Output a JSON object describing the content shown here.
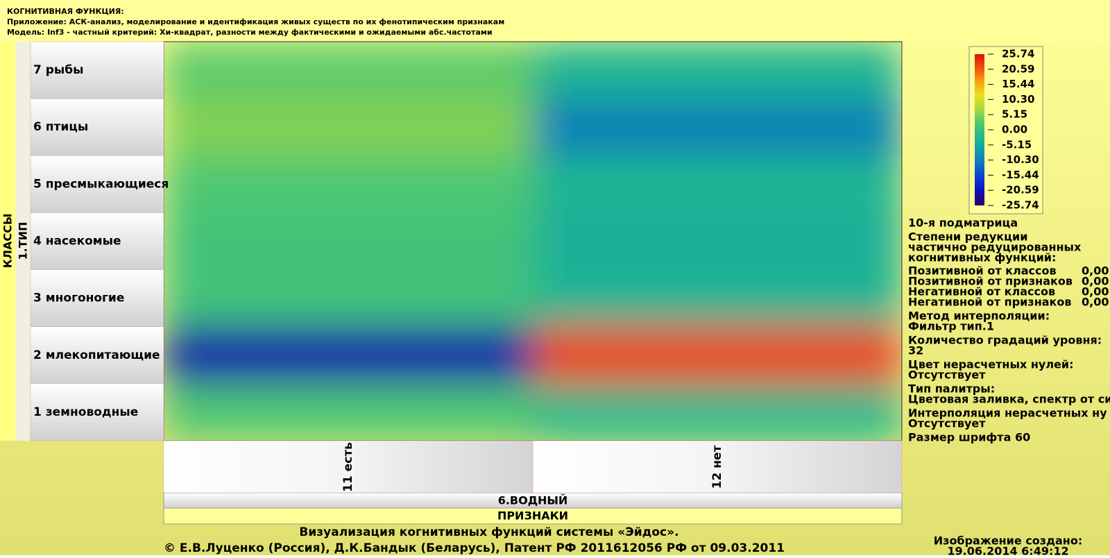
{
  "header": {
    "title": "КОГНИТИВНАЯ ФУНКЦИЯ:",
    "app": "Приложение: АСК-анализ, моделирование и идентификация живых существ по их фенотипическим признакам",
    "model": "Модель: Inf3 - частный критерий: Хи-квадрат, разности между фактическими и ожидаемыми абс.частотами"
  },
  "chart_data": {
    "type": "heatmap",
    "y_axis_label": "КЛАССЫ",
    "y_group_label": "1.ТИП",
    "rows": [
      "7 рыбы",
      "6 птицы",
      "5 пресмыкающиеся",
      "4 насекомые",
      "3 многоногие",
      "2 млекопитающие",
      "1 земноводные"
    ],
    "columns": [
      "11 есть",
      "12 нет"
    ],
    "x_group_label": "6.ВОДНЫЙ",
    "x_axis_label": "ПРИЗНАКИ",
    "values": [
      [
        3,
        -3
      ],
      [
        5,
        -10
      ],
      [
        2,
        -3
      ],
      [
        1,
        -4
      ],
      [
        1,
        -3
      ],
      [
        -22,
        22
      ],
      [
        2,
        -2
      ]
    ],
    "zlim": [
      -25.74,
      25.74
    ],
    "zticks": [
      25.74,
      20.59,
      15.44,
      {
        "value": 10.3,
        "label": "10.30"
      },
      5.15,
      {
        "value": 0,
        "label": "0.00"
      },
      -5.15,
      {
        "value": -10.3,
        "label": "-10.30"
      },
      -15.44,
      -20.59,
      -25.74
    ],
    "colors": [
      "#2a006a",
      "#1010b8",
      "#1038d8",
      "#1070c0",
      "#10a0a8",
      "#20b890",
      "#50c870",
      "#a8d840",
      "#e8e020",
      "#f8a010",
      "#f05010",
      "#e01010"
    ]
  },
  "info": {
    "lines": [
      "10-я подматрица",
      "Степени редукции",
      "частично редуцированных",
      "когнитивных функций:"
    ],
    "reductions": [
      {
        "name": "Позитивной от классов",
        "value": "0,00"
      },
      {
        "name": "Позитивной от признаков",
        "value": "0,00"
      },
      {
        "name": "Негативной от классов",
        "value": "0,00"
      },
      {
        "name": "Негативной от признаков",
        "value": "0,00"
      }
    ],
    "settings": [
      {
        "label": "Метод интерполяции:",
        "value": "Фильтр тип.1"
      },
      {
        "label": "Количество градаций уровня:",
        "value": "32"
      },
      {
        "label": "Цвет нерасчетных нулей:",
        "value": "Отсутствует"
      },
      {
        "label": "Тип палитры:",
        "value": "Цветовая заливка, спектр от си"
      },
      {
        "label": "Интерполяция нерасчетных ну",
        "value": "Отсутствует"
      }
    ],
    "font_size": "Размер шрифта 60"
  },
  "footer": {
    "line1": "Визуализация когнитивных функций системы «Эйдос».",
    "line2": "© Е.В.Луценко (Россия), Д.К.Бандык (Беларусь), Патент РФ  2011612056 РФ от 09.03.2011",
    "created_label": "Изображение создано:",
    "created_date": "19.06.2014  6:49:12"
  }
}
